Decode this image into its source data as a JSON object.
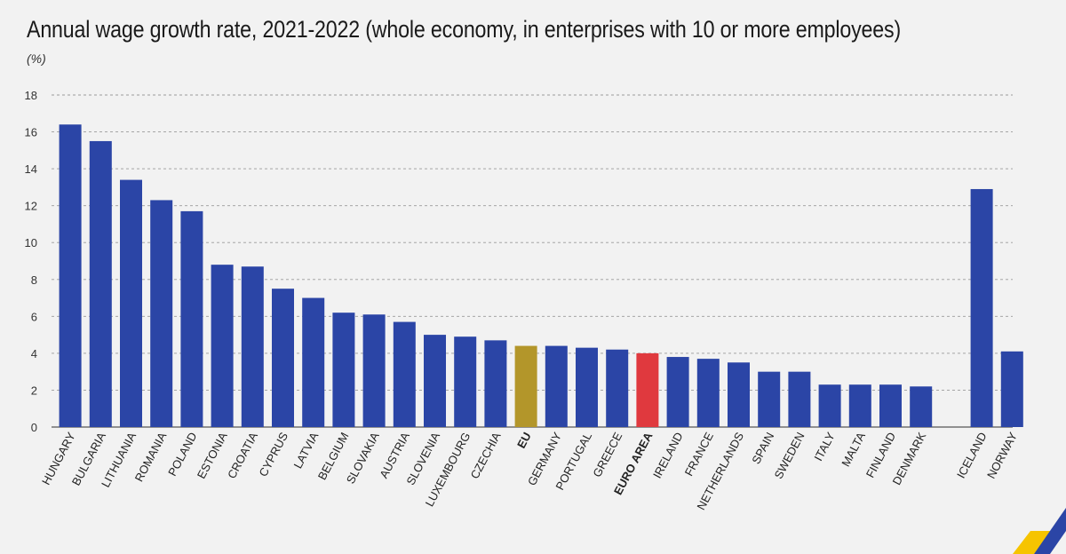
{
  "header": {
    "title": "Annual wage growth rate, 2021-2022 (whole economy, in enterprises with 10 or more employees)",
    "unit": "(%)"
  },
  "colors": {
    "bar": "#2b45a6",
    "eu": "#b3962a",
    "euro_area": "#e0393e",
    "grid": "#9a9a9a",
    "background": "#f2f2f2"
  },
  "chart_data": {
    "type": "bar",
    "title": "Annual wage growth rate, 2021-2022 (whole economy, in enterprises with 10 or more employees)",
    "ylabel": "(%)",
    "xlabel": "",
    "ylim": [
      0,
      18
    ],
    "yticks": [
      "0",
      "2",
      "4",
      "6",
      "8",
      "10",
      "12",
      "14",
      "16",
      "18"
    ],
    "grid": true,
    "bars": [
      {
        "label": "HUNGARY",
        "value": 16.4,
        "kind": "country"
      },
      {
        "label": "BULGARIA",
        "value": 15.5,
        "kind": "country"
      },
      {
        "label": "LITHUANIA",
        "value": 13.4,
        "kind": "country"
      },
      {
        "label": "ROMANIA",
        "value": 12.3,
        "kind": "country"
      },
      {
        "label": "POLAND",
        "value": 11.7,
        "kind": "country"
      },
      {
        "label": "ESTONIA",
        "value": 8.8,
        "kind": "country"
      },
      {
        "label": "CROATIA",
        "value": 8.7,
        "kind": "country"
      },
      {
        "label": "CYPRUS",
        "value": 7.5,
        "kind": "country"
      },
      {
        "label": "LATVIA",
        "value": 7.0,
        "kind": "country"
      },
      {
        "label": "BELGIUM",
        "value": 6.2,
        "kind": "country"
      },
      {
        "label": "SLOVAKIA",
        "value": 6.1,
        "kind": "country"
      },
      {
        "label": "AUSTRIA",
        "value": 5.7,
        "kind": "country"
      },
      {
        "label": "SLOVENIA",
        "value": 5.0,
        "kind": "country"
      },
      {
        "label": "LUXEMBOURG",
        "value": 4.9,
        "kind": "country"
      },
      {
        "label": "CZECHIA",
        "value": 4.7,
        "kind": "country"
      },
      {
        "label": "EU",
        "value": 4.4,
        "kind": "eu"
      },
      {
        "label": "GERMANY",
        "value": 4.4,
        "kind": "country"
      },
      {
        "label": "PORTUGAL",
        "value": 4.3,
        "kind": "country"
      },
      {
        "label": "GREECE",
        "value": 4.2,
        "kind": "country"
      },
      {
        "label": "EURO AREA",
        "value": 4.0,
        "kind": "euro_area"
      },
      {
        "label": "IRELAND",
        "value": 3.8,
        "kind": "country"
      },
      {
        "label": "FRANCE",
        "value": 3.7,
        "kind": "country"
      },
      {
        "label": "NETHERLANDS",
        "value": 3.5,
        "kind": "country"
      },
      {
        "label": "SPAIN",
        "value": 3.0,
        "kind": "country"
      },
      {
        "label": "SWEDEN",
        "value": 3.0,
        "kind": "country"
      },
      {
        "label": "ITALY",
        "value": 2.3,
        "kind": "country"
      },
      {
        "label": "MALTA",
        "value": 2.3,
        "kind": "country"
      },
      {
        "label": "FINLAND",
        "value": 2.3,
        "kind": "country"
      },
      {
        "label": "DENMARK",
        "value": 2.2,
        "kind": "country"
      },
      {
        "label": "",
        "value": null,
        "kind": "gap"
      },
      {
        "label": "ICELAND",
        "value": 12.9,
        "kind": "country"
      },
      {
        "label": "NORWAY",
        "value": 4.1,
        "kind": "country"
      }
    ]
  }
}
